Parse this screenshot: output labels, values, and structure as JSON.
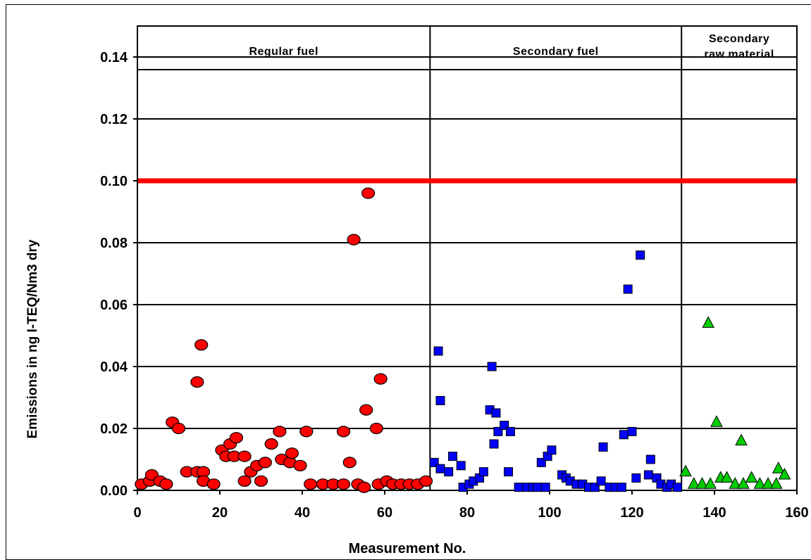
{
  "chart_data": {
    "type": "scatter",
    "xlabel": "Measurement No.",
    "ylabel": "Emissions in ng I-TEQ/Nm3 dry",
    "xlim": [
      0,
      160
    ],
    "ylim": [
      0,
      0.15
    ],
    "x_ticks": [
      "0",
      "20",
      "40",
      "60",
      "80",
      "100",
      "120",
      "140",
      "160"
    ],
    "y_ticks": [
      "0.00",
      "0.02",
      "0.04",
      "0.06",
      "0.08",
      "0.10",
      "0.12",
      "0.14"
    ],
    "grid": "horizontal",
    "limit_line": {
      "y": 0.1,
      "color": "#ff0000"
    },
    "section_dividers": [
      71,
      132
    ],
    "sections": [
      {
        "label_lines": [
          "Regular fuel"
        ],
        "x_range": [
          0,
          71
        ]
      },
      {
        "label_lines": [
          "Secondary fuel"
        ],
        "x_range": [
          71,
          132
        ]
      },
      {
        "label_lines": [
          "Secondary",
          "raw material"
        ],
        "x_range": [
          132,
          160
        ]
      }
    ],
    "series": [
      {
        "marker": "circle",
        "color": "#ff0000",
        "points": [
          [
            1,
            0.002
          ],
          [
            3,
            0.003
          ],
          [
            3.5,
            0.005
          ],
          [
            5.5,
            0.003
          ],
          [
            7,
            0.002
          ],
          [
            8.5,
            0.022
          ],
          [
            10,
            0.02
          ],
          [
            12,
            0.006
          ],
          [
            14.5,
            0.006
          ],
          [
            14.5,
            0.035
          ],
          [
            15.5,
            0.047
          ],
          [
            16,
            0.006
          ],
          [
            16,
            0.003
          ],
          [
            18.5,
            0.002
          ],
          [
            20.5,
            0.013
          ],
          [
            21.5,
            0.011
          ],
          [
            22.5,
            0.015
          ],
          [
            23.5,
            0.011
          ],
          [
            24,
            0.017
          ],
          [
            26,
            0.011
          ],
          [
            26,
            0.003
          ],
          [
            27.5,
            0.006
          ],
          [
            29,
            0.008
          ],
          [
            30,
            0.003
          ],
          [
            31,
            0.009
          ],
          [
            32.5,
            0.015
          ],
          [
            34.5,
            0.019
          ],
          [
            35,
            0.01
          ],
          [
            37,
            0.009
          ],
          [
            37.5,
            0.012
          ],
          [
            39.5,
            0.008
          ],
          [
            41,
            0.019
          ],
          [
            42,
            0.002
          ],
          [
            45,
            0.002
          ],
          [
            47.5,
            0.002
          ],
          [
            50,
            0.019
          ],
          [
            50,
            0.002
          ],
          [
            51.5,
            0.009
          ],
          [
            52.5,
            0.081
          ],
          [
            53.5,
            0.002
          ],
          [
            55,
            0.001
          ],
          [
            55.5,
            0.026
          ],
          [
            56,
            0.096
          ],
          [
            58,
            0.02
          ],
          [
            58.5,
            0.002
          ],
          [
            59,
            0.036
          ],
          [
            60.5,
            0.003
          ],
          [
            62,
            0.002
          ],
          [
            64,
            0.002
          ],
          [
            66,
            0.002
          ],
          [
            68,
            0.002
          ],
          [
            70,
            0.003
          ]
        ]
      },
      {
        "marker": "square",
        "color": "#0000ff",
        "points": [
          [
            72,
            0.009
          ],
          [
            73,
            0.045
          ],
          [
            73.5,
            0.029
          ],
          [
            73.5,
            0.007
          ],
          [
            75.5,
            0.006
          ],
          [
            76.5,
            0.011
          ],
          [
            78.5,
            0.008
          ],
          [
            79,
            0.001
          ],
          [
            80.5,
            0.002
          ],
          [
            81.5,
            0.003
          ],
          [
            83,
            0.004
          ],
          [
            84,
            0.006
          ],
          [
            85.5,
            0.026
          ],
          [
            86,
            0.04
          ],
          [
            86.5,
            0.015
          ],
          [
            87,
            0.025
          ],
          [
            87.5,
            0.019
          ],
          [
            89,
            0.021
          ],
          [
            90,
            0.006
          ],
          [
            90.5,
            0.019
          ],
          [
            92.5,
            0.001
          ],
          [
            94.5,
            0.001
          ],
          [
            96,
            0.001
          ],
          [
            97,
            0.001
          ],
          [
            98,
            0.009
          ],
          [
            99,
            0.001
          ],
          [
            99.5,
            0.011
          ],
          [
            100.5,
            0.013
          ],
          [
            103,
            0.005
          ],
          [
            104,
            0.004
          ],
          [
            105,
            0.003
          ],
          [
            106.5,
            0.002
          ],
          [
            108,
            0.002
          ],
          [
            109.5,
            0.001
          ],
          [
            111,
            0.001
          ],
          [
            112.5,
            0.003
          ],
          [
            113,
            0.014
          ],
          [
            114.5,
            0.001
          ],
          [
            116,
            0.001
          ],
          [
            117.5,
            0.001
          ],
          [
            118,
            0.018
          ],
          [
            119,
            0.065
          ],
          [
            120,
            0.019
          ],
          [
            121,
            0.004
          ],
          [
            122,
            0.076
          ],
          [
            124,
            0.005
          ],
          [
            124.5,
            0.01
          ],
          [
            126,
            0.004
          ],
          [
            127,
            0.002
          ],
          [
            128.5,
            0.001
          ],
          [
            129.5,
            0.002
          ],
          [
            131,
            0.001
          ]
        ]
      },
      {
        "marker": "triangle",
        "color": "#00cc00",
        "points": [
          [
            133,
            0.006
          ],
          [
            135,
            0.002
          ],
          [
            137,
            0.002
          ],
          [
            138.5,
            0.054
          ],
          [
            139,
            0.002
          ],
          [
            140.5,
            0.022
          ],
          [
            141.5,
            0.004
          ],
          [
            143,
            0.004
          ],
          [
            145,
            0.002
          ],
          [
            146.5,
            0.016
          ],
          [
            147,
            0.002
          ],
          [
            149,
            0.004
          ],
          [
            151,
            0.002
          ],
          [
            153,
            0.002
          ],
          [
            155,
            0.002
          ],
          [
            155.5,
            0.007
          ],
          [
            157,
            0.005
          ]
        ]
      }
    ]
  }
}
